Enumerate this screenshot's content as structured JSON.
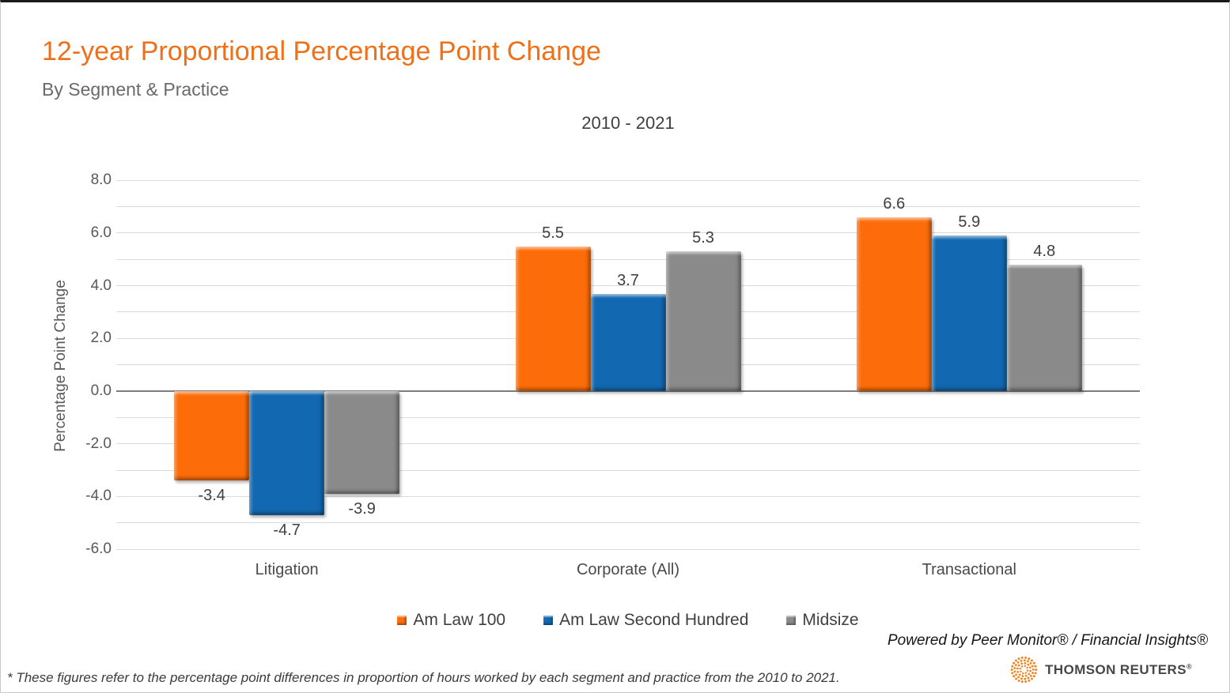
{
  "header": {
    "title": "12-year Proportional Percentage Point Change",
    "subtitle": "By Segment & Practice"
  },
  "colors": {
    "title_accent": "#EE7019",
    "brand_logo": "#F0821E",
    "am_law_100": "#FC6D0A",
    "am_law_second_hundred": "#1268B1",
    "midsize": "#8A8A8A"
  },
  "chart_data": {
    "type": "bar",
    "title": "2010 - 2021",
    "xlabel": "",
    "ylabel": "Percentage Point Change",
    "categories": [
      "Litigation",
      "Corporate (All)",
      "Transactional"
    ],
    "series": [
      {
        "name": "Am Law 100",
        "color": "#FC6D0A",
        "values": [
          -3.4,
          5.5,
          6.6
        ]
      },
      {
        "name": "Am Law Second Hundred",
        "color": "#1268B1",
        "values": [
          -4.7,
          3.7,
          5.9
        ]
      },
      {
        "name": "Midsize",
        "color": "#8A8A8A",
        "values": [
          -3.9,
          5.3,
          4.8
        ]
      }
    ],
    "ylim": [
      -6,
      8
    ],
    "ytick_step": 2,
    "gridline_step": 1,
    "grid": true,
    "legend_position": "bottom",
    "value_labels": true
  },
  "footer": {
    "powered_by": "Powered by Peer Monitor® / Financial Insights®",
    "brand": "THOMSON REUTERS",
    "brand_reg": "®",
    "note": "* These figures refer to the percentage point differences in proportion of hours worked by each segment and practice from the 2010 to 2021."
  }
}
